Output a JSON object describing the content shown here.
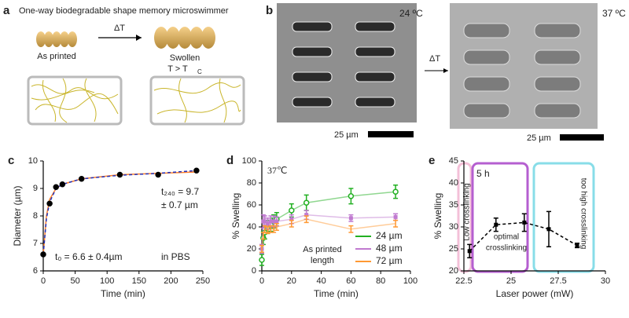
{
  "figure": {
    "a": {
      "panel": "a",
      "title": "One-way biodegradable shape memory microswimmer",
      "arrow": "ΔT",
      "left": "As printed",
      "right": "Swollen",
      "condition": "T > T",
      "condition_sub": "C"
    },
    "b": {
      "panel": "b",
      "left_temp": "24 ºC",
      "right_temp": "37 ºC",
      "arrow": "ΔT",
      "left_scale": "25 µm",
      "right_scale": "25 µm"
    }
  },
  "chart_data": [
    {
      "type": "line",
      "panel": "c",
      "xlabel": "Time (min)",
      "ylabel": "Diameter (µm)",
      "xlim": [
        0,
        250
      ],
      "ylim": [
        6,
        10
      ],
      "xticks": [
        0,
        50,
        100,
        150,
        200,
        250
      ],
      "yticks": [
        6,
        7,
        8,
        9,
        10
      ],
      "annotations": [
        "t₂₄₀ = 9.7",
        "± 0.7 µm",
        "t₀ = 6.6 ± 0.4µm",
        "in PBS"
      ],
      "series": [
        {
          "color": "#ff7f2a",
          "line": "solid",
          "marker": "none",
          "x": [
            0,
            5,
            10,
            20,
            30,
            60,
            120,
            180,
            240
          ],
          "values": [
            6.6,
            8.0,
            8.6,
            9.0,
            9.15,
            9.35,
            9.5,
            9.55,
            9.6
          ]
        },
        {
          "color": "#2233bb",
          "line": "dashed",
          "marker": "none",
          "x": [
            0,
            5,
            10,
            20,
            30,
            60,
            120,
            180,
            240
          ],
          "values": [
            6.6,
            7.9,
            8.5,
            9.0,
            9.15,
            9.35,
            9.48,
            9.55,
            9.65
          ]
        },
        {
          "color": "#000000",
          "line": "none",
          "marker": "circle",
          "x": [
            0,
            10,
            20,
            30,
            60,
            120,
            180,
            240
          ],
          "values": [
            6.6,
            8.45,
            9.05,
            9.15,
            9.35,
            9.5,
            9.5,
            9.65
          ]
        }
      ]
    },
    {
      "type": "line",
      "panel": "d",
      "xlabel": "Time (min)",
      "ylabel": "% Swelling",
      "xlim": [
        0,
        100
      ],
      "ylim": [
        0,
        100
      ],
      "xticks": [
        0,
        20,
        40,
        60,
        80,
        100
      ],
      "yticks": [
        0,
        20,
        40,
        60,
        80,
        100
      ],
      "annotations": [
        "37℃",
        "As printed",
        "length"
      ],
      "legend": "lower right",
      "series": [
        {
          "name": "24 µm",
          "color": "#22b022",
          "line": "solid",
          "marker": "circle",
          "x": [
            0,
            1,
            2,
            4,
            6,
            8,
            10,
            20,
            30,
            60,
            90
          ],
          "values": [
            10,
            30,
            35,
            40,
            42,
            45,
            47,
            55,
            62,
            68,
            72
          ],
          "errors": [
            5,
            6,
            6,
            6,
            6,
            6,
            6,
            6,
            7,
            7,
            6
          ]
        },
        {
          "name": "48 µm",
          "color": "#c07ad0",
          "line": "solid",
          "marker": "square",
          "x": [
            0,
            1,
            2,
            4,
            6,
            8,
            10,
            20,
            30,
            60,
            90
          ],
          "values": [
            20,
            45,
            45,
            43,
            45,
            45,
            45,
            47,
            51,
            48,
            49
          ],
          "errors": [
            4,
            6,
            5,
            5,
            5,
            5,
            4,
            4,
            4,
            3,
            3
          ]
        },
        {
          "name": "72 µm",
          "color": "#ff9933",
          "line": "solid",
          "marker": "none",
          "x": [
            0,
            1,
            2,
            4,
            6,
            8,
            10,
            20,
            30,
            60,
            90
          ],
          "values": [
            20,
            32,
            38,
            37,
            38,
            38,
            40,
            43,
            47,
            38,
            43
          ],
          "errors": [
            3,
            3,
            3,
            3,
            3,
            3,
            3,
            3,
            3,
            3,
            3
          ]
        }
      ]
    },
    {
      "type": "line",
      "panel": "e",
      "xlabel": "Laser power (mW)",
      "ylabel": "% Swelling",
      "xlim": [
        22.5,
        30
      ],
      "ylim": [
        20,
        45
      ],
      "xticks": [
        22.5,
        25,
        27.5,
        30
      ],
      "yticks": [
        20,
        25,
        30,
        35,
        40,
        45
      ],
      "annotations": [
        "Low crosslinking",
        "5 h",
        "optimal",
        "crosslinking",
        "too high crosslinking"
      ],
      "series": [
        {
          "color": "#000000",
          "line": "dashed",
          "marker": "square",
          "x": [
            22.8,
            24.2,
            25.7,
            27,
            28.5
          ],
          "values": [
            24.5,
            30.5,
            31,
            29.5,
            25.8
          ],
          "errors": [
            1.5,
            1.5,
            2,
            4,
            0.5
          ]
        }
      ]
    }
  ]
}
